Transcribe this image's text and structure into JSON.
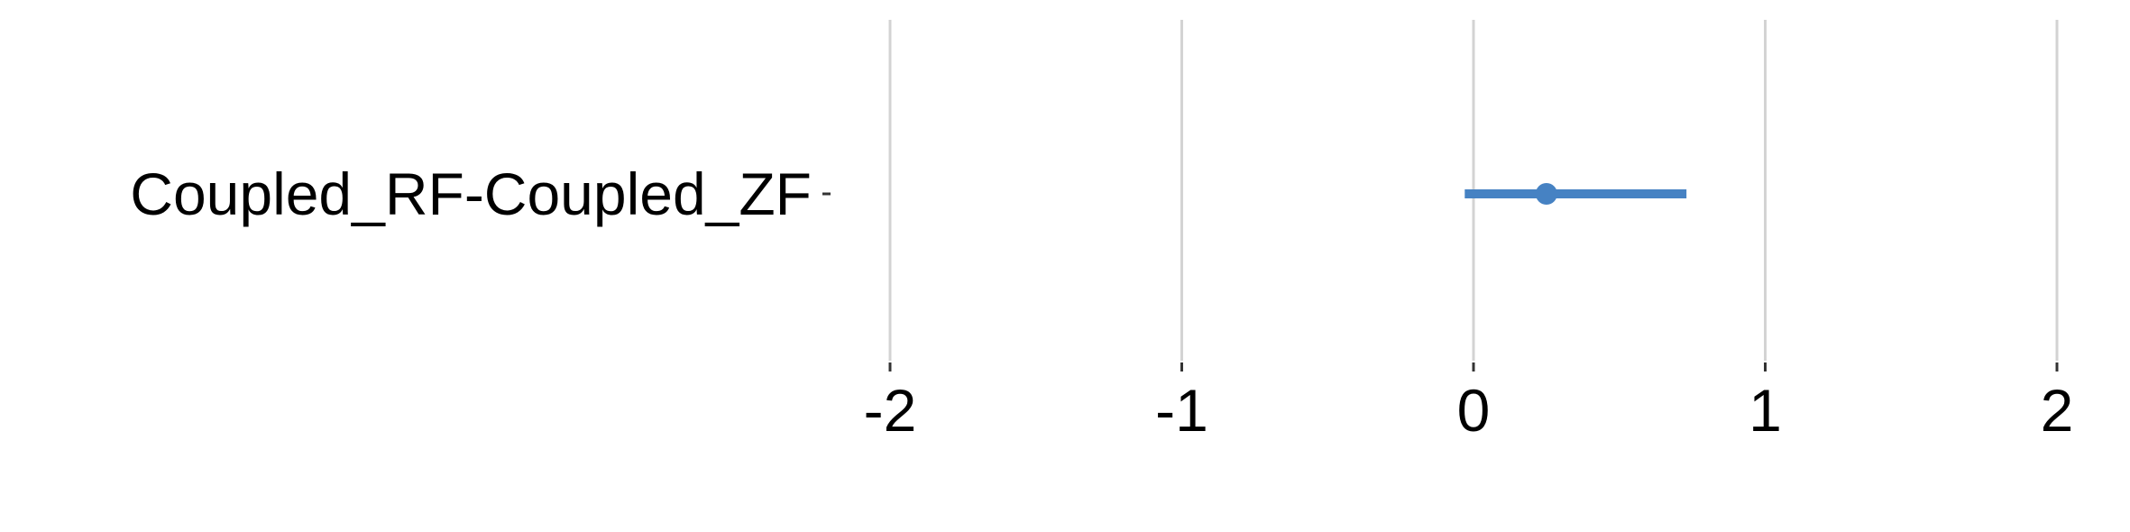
{
  "chart_data": {
    "type": "scatter",
    "categories": [
      "Coupled_RF-Coupled_ZF"
    ],
    "series": [
      {
        "points": [
          {
            "category": "Coupled_RF-Coupled_ZF",
            "estimate": 0.25,
            "lower": -0.03,
            "upper": 0.73
          }
        ]
      }
    ],
    "xticks": [
      -2,
      -1,
      0,
      1,
      2
    ],
    "xtick_labels": [
      "-2",
      "-1",
      "0",
      "1",
      "2"
    ],
    "xlim": [
      -2,
      2
    ],
    "grid": "vertical",
    "colors": {
      "series": "#4682c3",
      "grid": "#d3d3d3",
      "text": "#000000"
    }
  }
}
